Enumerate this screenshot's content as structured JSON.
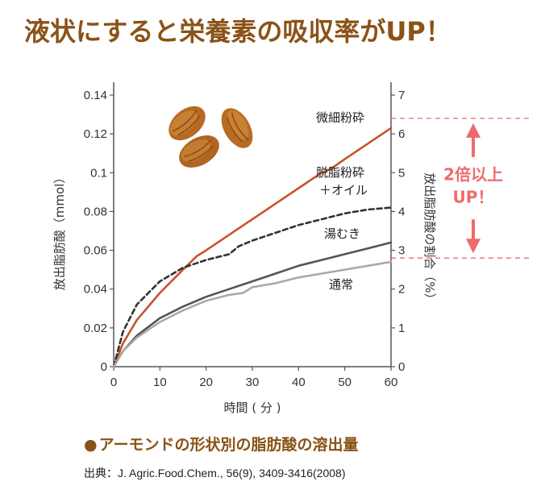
{
  "headline": "液状にすると栄養素の吸収率がUP！",
  "caption": {
    "bullet": "●",
    "text": "アーモンドの形状別の脂肪酸の溶出量"
  },
  "source": "出典：J. Agric.Food.Chem., 56(9), 3409-3416(2008)",
  "colors": {
    "headline": "#8b5216",
    "fine_powder": "#c8532a",
    "defatted": "#333333",
    "blanched": "#555555",
    "normal": "#a9a9a9",
    "annotation": "#ef6b6b"
  },
  "chart_data": {
    "type": "line",
    "title": "",
    "xlabel": "時間 ( 分 )",
    "ylabel": "放出脂肪酸（mmol）",
    "ylabel_right": "放出脂肪酸の割合（%）",
    "xlim": [
      0,
      60
    ],
    "ylim": [
      0,
      0.14
    ],
    "ylim_right": [
      0,
      7
    ],
    "x_ticks": [
      "0",
      "10",
      "20",
      "30",
      "40",
      "50",
      "60"
    ],
    "y_ticks": [
      "0",
      "0.02",
      "0.04",
      "0.06",
      "0.08",
      "0.1",
      "0.12",
      "0.14"
    ],
    "y_right_ticks": [
      "0",
      "1",
      "2",
      "3",
      "4",
      "5",
      "6",
      "7"
    ],
    "grid": false,
    "series": [
      {
        "name": "微細粉砕",
        "style": "solid",
        "color_key": "fine_powder",
        "points": [
          [
            0,
            0
          ],
          [
            2,
            0.012
          ],
          [
            5,
            0.024
          ],
          [
            10,
            0.038
          ],
          [
            15,
            0.05
          ],
          [
            18,
            0.057
          ],
          [
            20,
            0.06
          ],
          [
            25,
            0.068
          ],
          [
            30,
            0.076
          ],
          [
            35,
            0.084
          ],
          [
            40,
            0.092
          ],
          [
            45,
            0.1
          ],
          [
            47,
            0.102
          ],
          [
            50,
            0.107
          ],
          [
            55,
            0.115
          ],
          [
            60,
            0.123
          ]
        ]
      },
      {
        "name": "脱脂粉砕\n＋オイル",
        "style": "dashed",
        "color_key": "defatted",
        "points": [
          [
            0,
            0
          ],
          [
            2,
            0.018
          ],
          [
            5,
            0.032
          ],
          [
            10,
            0.044
          ],
          [
            15,
            0.051
          ],
          [
            20,
            0.055
          ],
          [
            25,
            0.058
          ],
          [
            27,
            0.062
          ],
          [
            30,
            0.065
          ],
          [
            35,
            0.069
          ],
          [
            40,
            0.073
          ],
          [
            45,
            0.076
          ],
          [
            50,
            0.079
          ],
          [
            55,
            0.081
          ],
          [
            60,
            0.082
          ]
        ]
      },
      {
        "name": "湯むき",
        "style": "solid",
        "color_key": "blanched",
        "points": [
          [
            0,
            0
          ],
          [
            2,
            0.008
          ],
          [
            5,
            0.016
          ],
          [
            10,
            0.025
          ],
          [
            15,
            0.031
          ],
          [
            20,
            0.036
          ],
          [
            25,
            0.04
          ],
          [
            30,
            0.044
          ],
          [
            35,
            0.048
          ],
          [
            40,
            0.052
          ],
          [
            45,
            0.055
          ],
          [
            50,
            0.058
          ],
          [
            55,
            0.061
          ],
          [
            60,
            0.064
          ]
        ]
      },
      {
        "name": "通常",
        "style": "solid",
        "color_key": "normal",
        "points": [
          [
            0,
            0
          ],
          [
            2,
            0.008
          ],
          [
            5,
            0.015
          ],
          [
            10,
            0.023
          ],
          [
            15,
            0.029
          ],
          [
            20,
            0.034
          ],
          [
            25,
            0.037
          ],
          [
            28,
            0.038
          ],
          [
            30,
            0.041
          ],
          [
            35,
            0.043
          ],
          [
            40,
            0.046
          ],
          [
            45,
            0.048
          ],
          [
            50,
            0.05
          ],
          [
            55,
            0.052
          ],
          [
            60,
            0.054
          ]
        ]
      }
    ],
    "annotation": {
      "line1": "2倍以上",
      "line2": "UP！",
      "from_y": 0.056,
      "to_y": 0.128
    }
  }
}
